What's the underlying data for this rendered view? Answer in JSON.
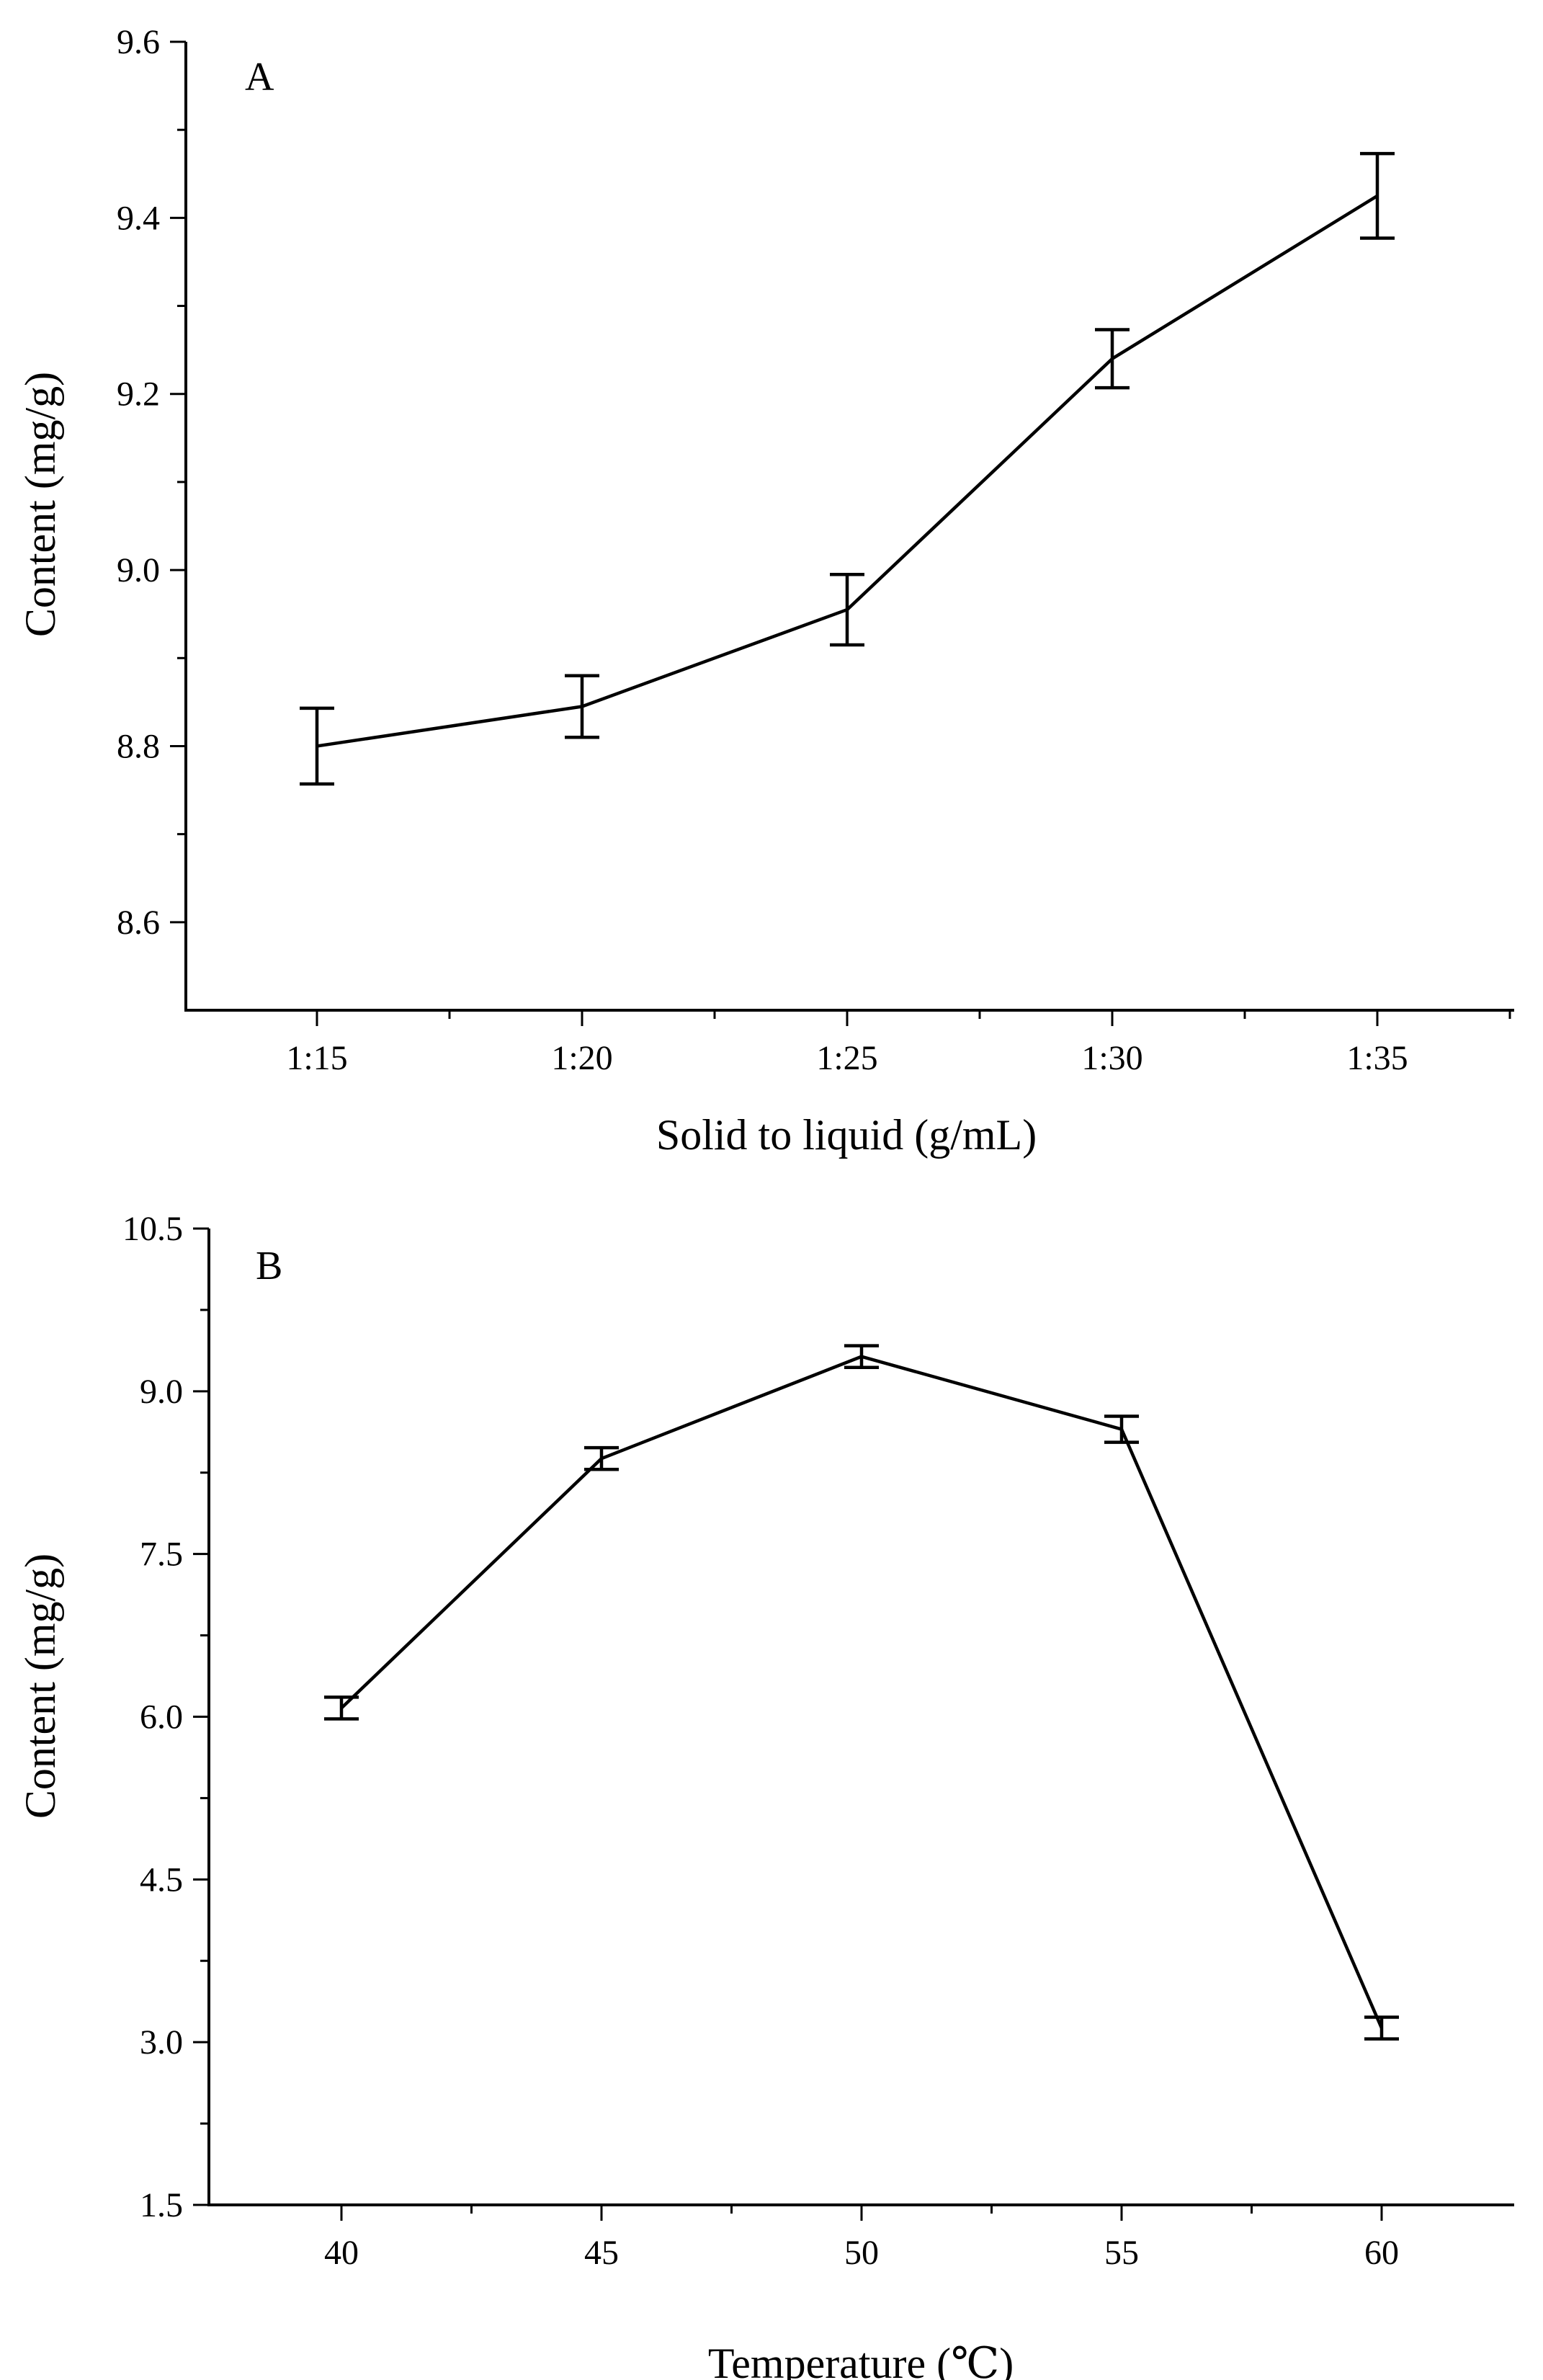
{
  "chart_data": [
    {
      "type": "line",
      "panel_label": "A",
      "title": "",
      "xlabel": "Solid to liquid (g/mL)",
      "ylabel": "Content (mg/g)",
      "categories": [
        "1:15",
        "1:20",
        "1:25",
        "1:30",
        "1:35"
      ],
      "series": [
        {
          "name": "Content",
          "values": [
            8.8,
            8.845,
            8.955,
            9.24,
            9.425
          ],
          "errors": [
            0.043,
            0.035,
            0.04,
            0.033,
            0.048
          ]
        }
      ],
      "ylim": [
        8.5,
        9.6
      ],
      "yticks": [
        8.6,
        8.8,
        9.0,
        9.2,
        9.4,
        9.6
      ],
      "ytick_labels": [
        "8.6",
        "8.8",
        "9.0",
        "9.2",
        "9.4",
        "9.6"
      ],
      "grid": false
    },
    {
      "type": "line",
      "panel_label": "B",
      "title": "",
      "xlabel": "Temperature (℃)",
      "ylabel": "Content (mg/g)",
      "categories": [
        "40",
        "45",
        "50",
        "55",
        "60"
      ],
      "series": [
        {
          "name": "Content",
          "values": [
            6.08,
            8.38,
            9.32,
            8.65,
            3.13
          ],
          "errors": [
            0.1,
            0.1,
            0.1,
            0.12,
            0.1
          ]
        }
      ],
      "ylim": [
        1.5,
        10.5
      ],
      "yticks": [
        1.5,
        3.0,
        4.5,
        6.0,
        7.5,
        9.0,
        10.5
      ],
      "ytick_labels": [
        "1.5",
        "3.0",
        "4.5",
        "6.0",
        "7.5",
        "9.0",
        "10.5"
      ],
      "grid": false
    }
  ]
}
